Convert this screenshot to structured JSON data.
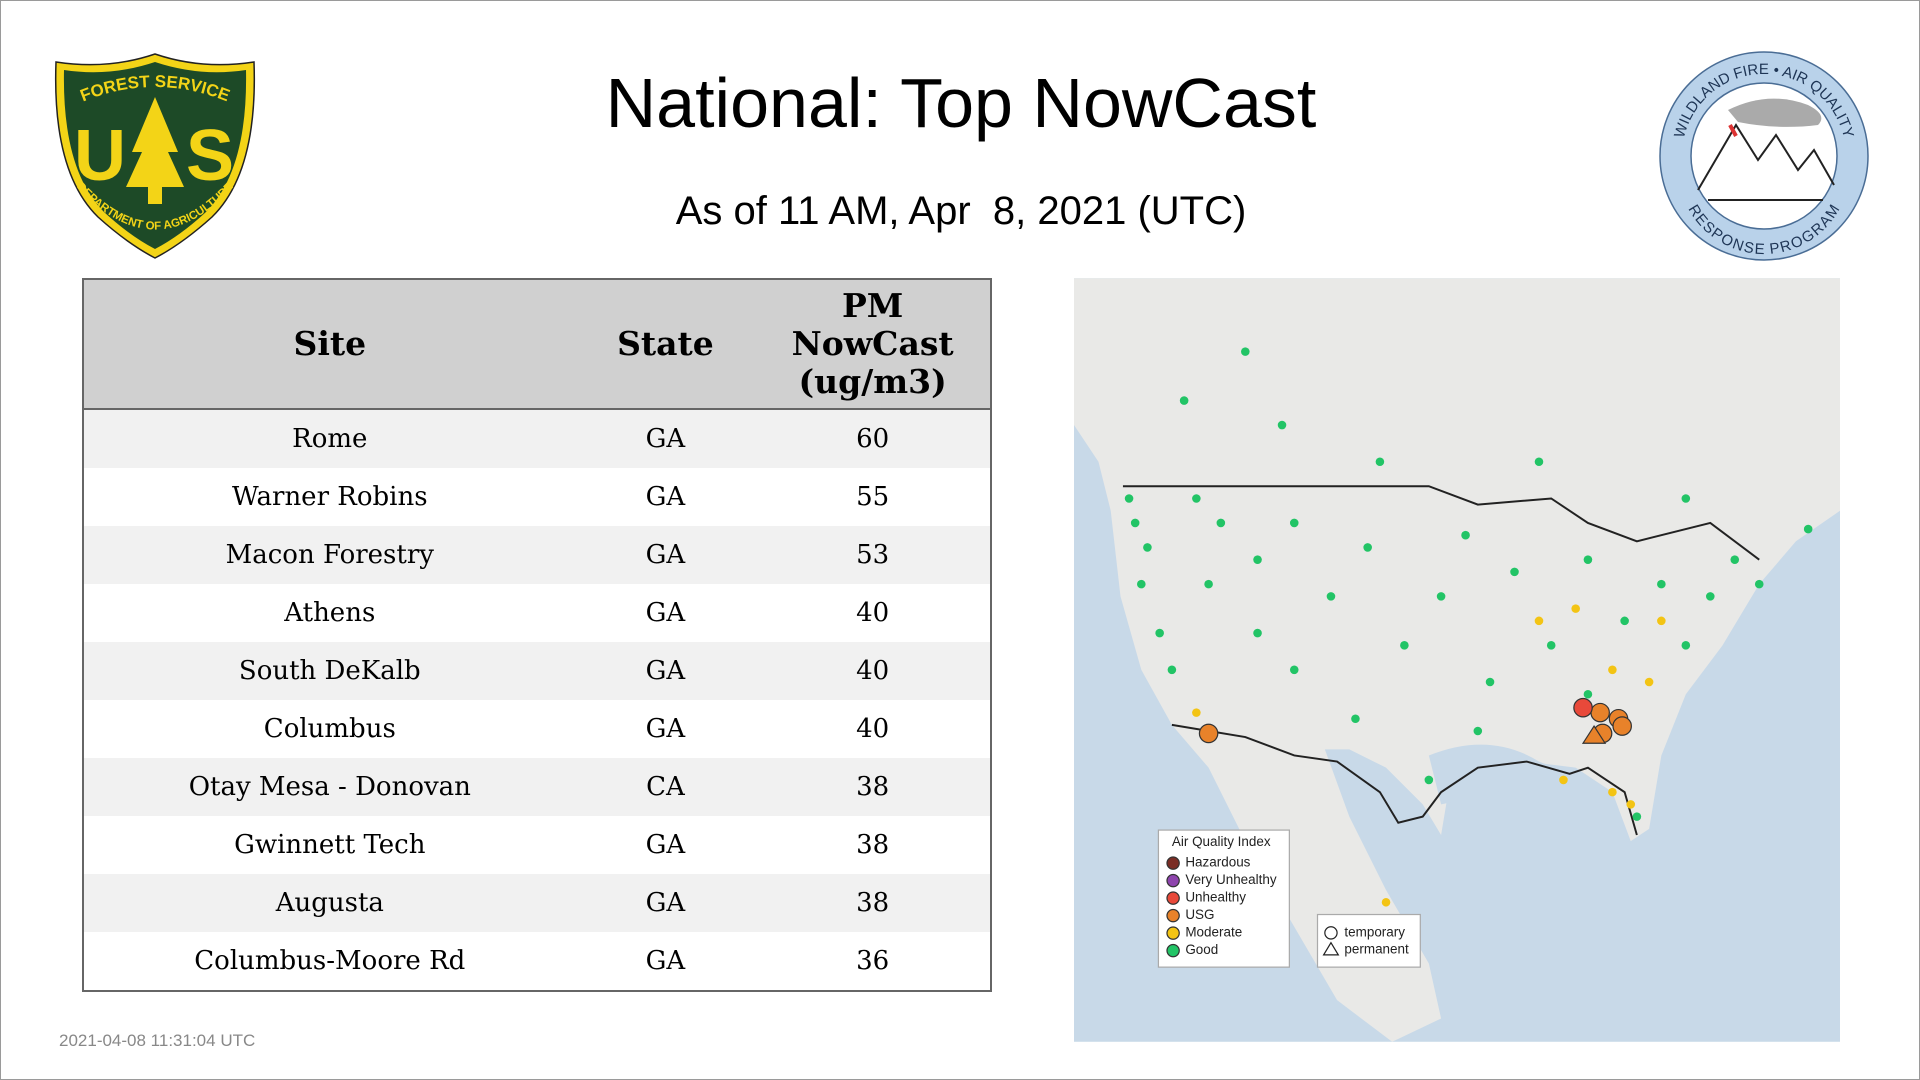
{
  "header": {
    "title": "National: Top NowCast",
    "subtitle": "As of 11 AM, Apr  8, 2021 (UTC)"
  },
  "logos": {
    "forest_service": {
      "top": "FOREST SERVICE",
      "letters": [
        "U",
        "S"
      ],
      "bottom": "DEPARTMENT OF AGRICULTURE"
    },
    "wildland": {
      "top": "WILDLAND FIRE • AIR QUALITY",
      "bottom": "RESPONSE PROGRAM"
    }
  },
  "table": {
    "columns": [
      "Site",
      "State",
      "PM NowCast (ug/m3)"
    ],
    "rows": [
      [
        "Rome",
        "GA",
        60
      ],
      [
        "Warner Robins",
        "GA",
        55
      ],
      [
        "Macon Forestry",
        "GA",
        53
      ],
      [
        "Athens",
        "GA",
        40
      ],
      [
        "South DeKalb",
        "GA",
        40
      ],
      [
        "Columbus",
        "GA",
        40
      ],
      [
        "Otay Mesa - Donovan",
        "CA",
        38
      ],
      [
        "Gwinnett Tech",
        "GA",
        38
      ],
      [
        "Augusta",
        "GA",
        38
      ],
      [
        "Columbus-Moore Rd",
        "GA",
        36
      ]
    ]
  },
  "map": {
    "legend": {
      "title": "Air Quality Index",
      "items": [
        "Hazardous",
        "Very Unhealthy",
        "Unhealthy",
        "USG",
        "Moderate",
        "Good"
      ]
    },
    "shape_legend": [
      "temporary",
      "permanent"
    ]
  },
  "timestamp": "2021-04-08 11:31:04 UTC"
}
